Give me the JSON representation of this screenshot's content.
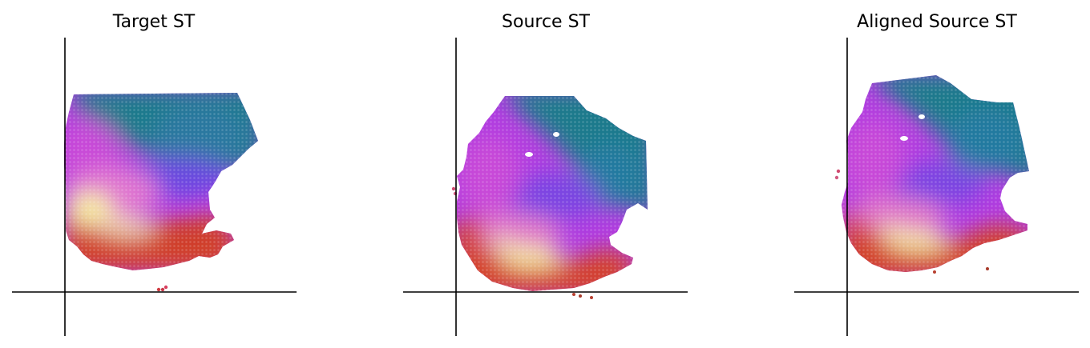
{
  "chart_data": [
    {
      "type": "scatter",
      "title": "Target ST",
      "grid": false,
      "axes_style": "crosshair",
      "colors": [
        "#1a7a8c",
        "#2c6fb0",
        "#7a3fe0",
        "#b43ce0",
        "#e070c8",
        "#f0e0a0",
        "#d8402a",
        "#b8352a"
      ],
      "regions": [
        {
          "label": "teal",
          "color": "#1a7a8c"
        },
        {
          "label": "violet",
          "color": "#a83ee0"
        },
        {
          "label": "pink",
          "color": "#e070c8"
        },
        {
          "label": "yellow",
          "color": "#f4e6a0"
        },
        {
          "label": "red",
          "color": "#d2422a"
        }
      ]
    },
    {
      "type": "scatter",
      "title": "Source ST",
      "grid": false,
      "axes_style": "crosshair",
      "colors": [
        "#1a7a8c",
        "#2c6fb0",
        "#7a3fe0",
        "#b43ce0",
        "#e070c8",
        "#f0e0a0",
        "#d8402a",
        "#b8352a"
      ],
      "regions": [
        {
          "label": "teal",
          "color": "#1a7a8c"
        },
        {
          "label": "violet",
          "color": "#a83ee0"
        },
        {
          "label": "pink",
          "color": "#e070c8"
        },
        {
          "label": "yellow",
          "color": "#f4e6a0"
        },
        {
          "label": "red",
          "color": "#d2422a"
        }
      ]
    },
    {
      "type": "scatter",
      "title": "Aligned Source ST",
      "grid": false,
      "axes_style": "crosshair",
      "colors": [
        "#1a7a8c",
        "#2c6fb0",
        "#7a3fe0",
        "#b43ce0",
        "#e070c8",
        "#f0e0a0",
        "#d8402a",
        "#b8352a"
      ],
      "regions": [
        {
          "label": "teal",
          "color": "#1a7a8c"
        },
        {
          "label": "violet",
          "color": "#a83ee0"
        },
        {
          "label": "pink",
          "color": "#e070c8"
        },
        {
          "label": "yellow",
          "color": "#f4e6a0"
        },
        {
          "label": "red",
          "color": "#d2422a"
        }
      ]
    }
  ]
}
